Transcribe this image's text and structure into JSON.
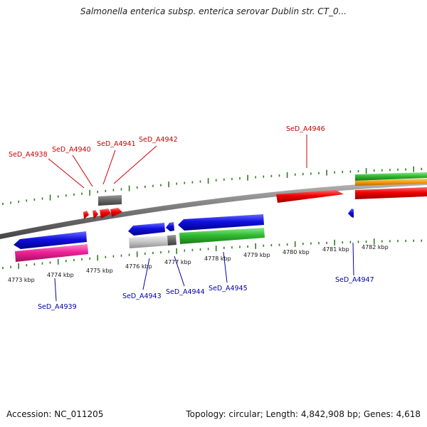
{
  "title": "Salmonella enterica subsp. enterica serovar Dublin str. CT_0...",
  "footer": {
    "accession": "Accession: NC_011205",
    "stats": "Topology: circular; Length: 4,842,908 bp; Genes: 4,618"
  },
  "colors": {
    "forward_label": "#cc0000",
    "reverse_label": "#0000aa",
    "backbone": "#777777",
    "tick": "#2e7d1e"
  },
  "kbp_ticks": [
    "4773 kbp",
    "4774 kbp",
    "4775 kbp",
    "4776 kbp",
    "4777 kbp",
    "4778 kbp",
    "4779 kbp",
    "4780 kbp",
    "4781 kbp",
    "4782 kbp"
  ],
  "forward_labels": [
    "SeD_A4938",
    "SeD_A4940",
    "SeD_A4941",
    "SeD_A4942",
    "SeD_A4946"
  ],
  "reverse_labels": [
    "SeD_A4939",
    "SeD_A4943",
    "SeD_A4944",
    "SeD_A4945",
    "SeD_A4947"
  ]
}
